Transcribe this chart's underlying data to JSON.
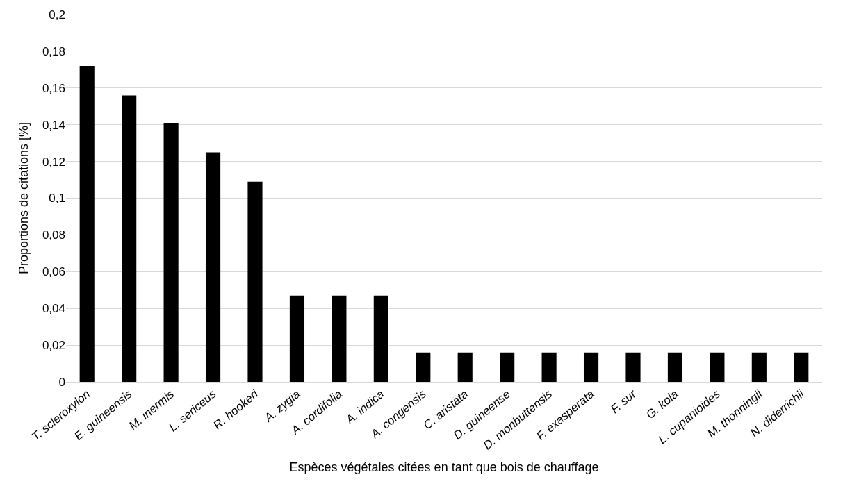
{
  "chart_data": {
    "type": "bar",
    "xlabel": "Espèces végétales citées en tant que bois de chauffage",
    "ylabel": "Proportions de citations [%]",
    "categories": [
      "T. scleroxylon",
      "E. guineensis",
      "M. inermis",
      "L. sericeus",
      "R. hookeri",
      "A. zygia",
      "A. cordifolia",
      "A. indica",
      "A. congensis",
      "C. aristata",
      "D. guineense",
      "D. monbuttensis",
      "F. exasperata",
      "F. sur",
      "G. kola",
      "L. cupanioides",
      "M. thonningii",
      "N. diderrichii"
    ],
    "values": [
      0.172,
      0.156,
      0.141,
      0.125,
      0.109,
      0.047,
      0.047,
      0.047,
      0.016,
      0.016,
      0.016,
      0.016,
      0.016,
      0.016,
      0.016,
      0.016,
      0.016,
      0.016
    ],
    "color": "#000000",
    "ylim": [
      0,
      0.2
    ],
    "yticks": [
      0,
      {
        "value": 0.02,
        "label": "0,02"
      },
      {
        "value": 0.04,
        "label": "0,04"
      },
      {
        "value": 0.06,
        "label": "0,06"
      },
      {
        "value": 0.08,
        "label": "0,08"
      },
      {
        "value": 0.1,
        "label": "0,1"
      },
      {
        "value": 0.12,
        "label": "0,12"
      },
      {
        "value": 0.14,
        "label": "0,14"
      },
      {
        "value": 0.16,
        "label": "0,16"
      },
      {
        "value": 0.18,
        "label": "0,18"
      },
      {
        "value": 0.2,
        "label": "0,2"
      }
    ],
    "grid": "y"
  }
}
